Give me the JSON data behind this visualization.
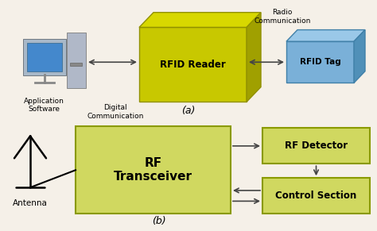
{
  "bg_color": "#f5f0e8",
  "rfid_reader_face": "#c8c800",
  "rfid_reader_top": "#d8d800",
  "rfid_reader_right": "#a0a000",
  "rfid_reader_edge": "#909000",
  "rfid_tag_face": "#7ab0d8",
  "rfid_tag_top": "#9ac8e8",
  "rfid_tag_right": "#5090b8",
  "rfid_tag_edge": "#4080a8",
  "block_fill": "#d0d860",
  "block_edge": "#8a9a00",
  "title_a": "(a)",
  "title_b": "(b)",
  "label_rfid_reader": "RFID Reader",
  "label_rfid_tag": "RFID Tag",
  "label_app_software": "Application\nSoftware",
  "label_digital_comm": "Digital\nCommunication",
  "label_radio_comm": "Radio\nCommunication",
  "label_antenna": "Antenna",
  "label_rf_transceiver": "RF\nTransceiver",
  "label_rf_detector": "RF Detector",
  "label_control_section": "Control Section",
  "figsize": [
    4.74,
    2.91
  ],
  "dpi": 100
}
